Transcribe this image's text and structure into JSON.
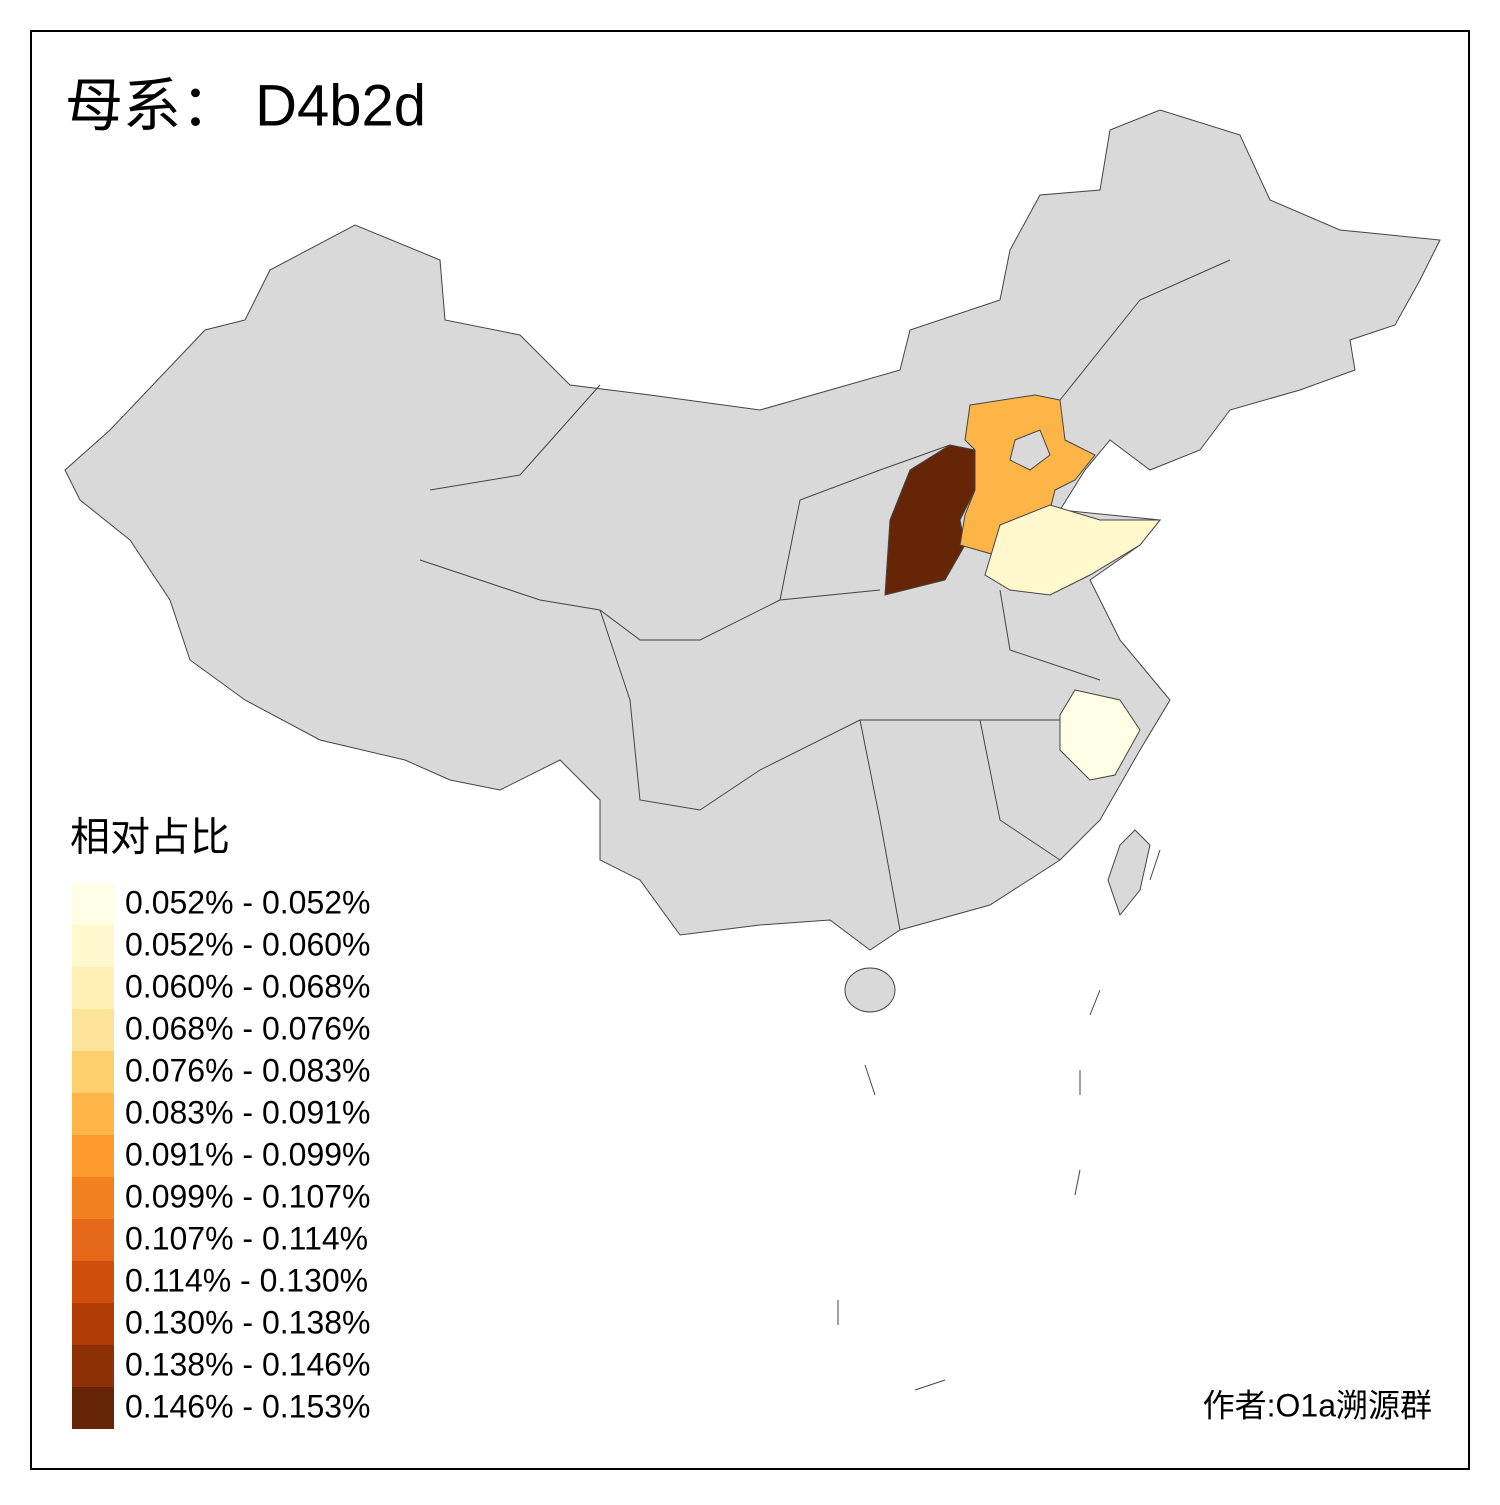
{
  "title": "母系： D4b2d",
  "legend": {
    "title": "相对占比",
    "items": [
      {
        "label": "0.052% - 0.052%",
        "color": "#ffffe5"
      },
      {
        "label": "0.052% - 0.060%",
        "color": "#fff8cd"
      },
      {
        "label": "0.060% - 0.068%",
        "color": "#feefb5"
      },
      {
        "label": "0.068% - 0.076%",
        "color": "#fee39b"
      },
      {
        "label": "0.076% - 0.083%",
        "color": "#fed06b"
      },
      {
        "label": "0.083% - 0.091%",
        "color": "#fdb547"
      },
      {
        "label": "0.091% - 0.099%",
        "color": "#fb9a2c"
      },
      {
        "label": "0.099% - 0.107%",
        "color": "#f3801f"
      },
      {
        "label": "0.107% - 0.114%",
        "color": "#e5671a"
      },
      {
        "label": "0.114% - 0.130%",
        "color": "#cf4e0b"
      },
      {
        "label": "0.130% - 0.138%",
        "color": "#b03d05"
      },
      {
        "label": "0.138% - 0.146%",
        "color": "#8e3005"
      },
      {
        "label": "0.146% - 0.153%",
        "color": "#662506"
      }
    ]
  },
  "credit": "作者:O1a溯源群"
}
